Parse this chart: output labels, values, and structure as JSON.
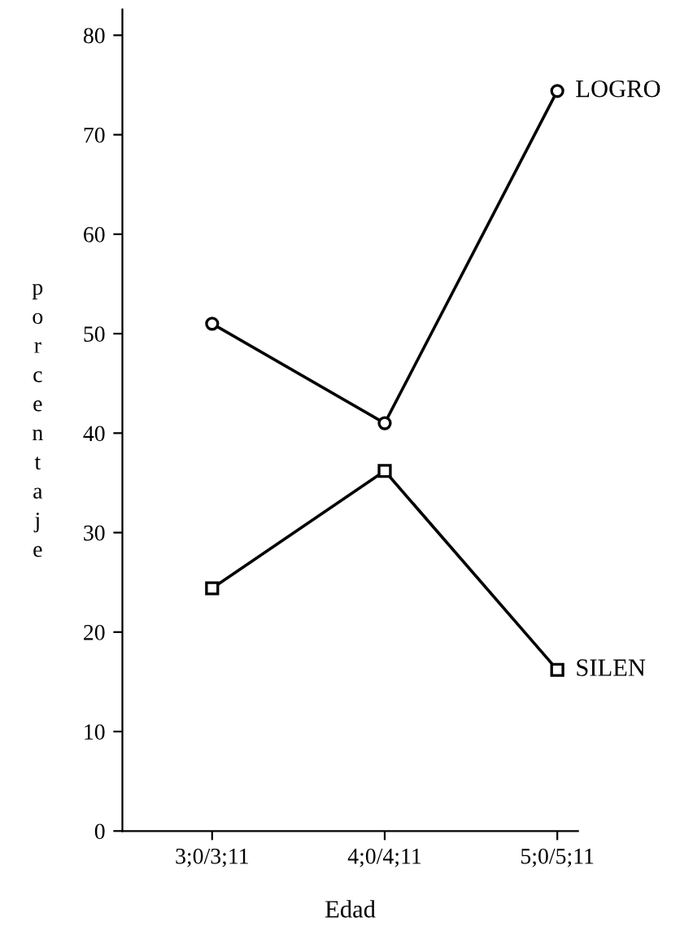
{
  "chart_data": {
    "type": "line",
    "xlabel": "Edad",
    "ylabel": "porcentaje",
    "categories": [
      "3;0/3;11",
      "4;0/4;11",
      "5;0/5;11"
    ],
    "series": [
      {
        "name": "LOGRO",
        "color": "#000000",
        "values": [
          51,
          41,
          74.4
        ],
        "marker": "circle"
      },
      {
        "name": "SILEN",
        "color": "#000000",
        "values": [
          24.4,
          36.2,
          16.2
        ],
        "marker": "square"
      }
    ],
    "ylim": [
      0,
      82.6
    ],
    "yticks": [
      0,
      10,
      20,
      30,
      40,
      50,
      60,
      70,
      80
    ],
    "grid": false,
    "legend": false,
    "line_style": "solid"
  }
}
